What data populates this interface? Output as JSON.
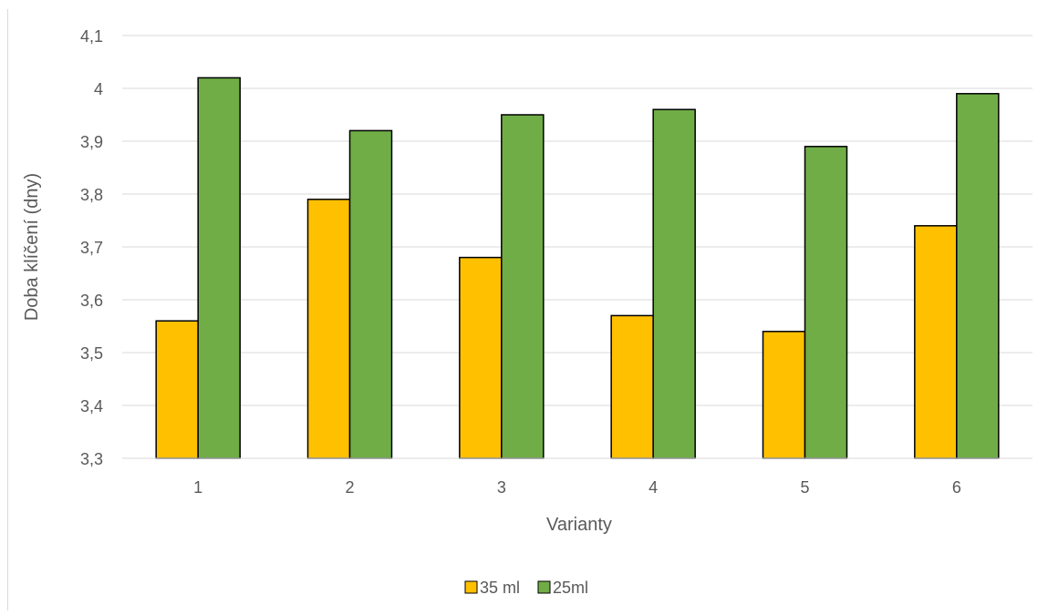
{
  "chart_data": {
    "type": "bar",
    "categories": [
      "1",
      "2",
      "3",
      "4",
      "5",
      "6"
    ],
    "series": [
      {
        "name": "35 ml",
        "color": "#FFC000",
        "values": [
          3.56,
          3.79,
          3.68,
          3.57,
          3.54,
          3.74
        ]
      },
      {
        "name": "25ml",
        "color": "#70AD47",
        "values": [
          4.02,
          3.92,
          3.95,
          3.96,
          3.89,
          3.99
        ]
      }
    ],
    "xlabel": "Varianty",
    "ylabel": "Doba klíčení (dny)",
    "ylim": [
      3.3,
      4.1
    ],
    "yticks": [
      "3,3",
      "3,4",
      "3,5",
      "3,6",
      "3,7",
      "3,8",
      "3,9",
      "4",
      "4,1"
    ],
    "grid": true,
    "legend": "bottom",
    "colors": {
      "grid": "#d9d9d9",
      "text": "#595959",
      "bar_outline": "#000000"
    }
  }
}
